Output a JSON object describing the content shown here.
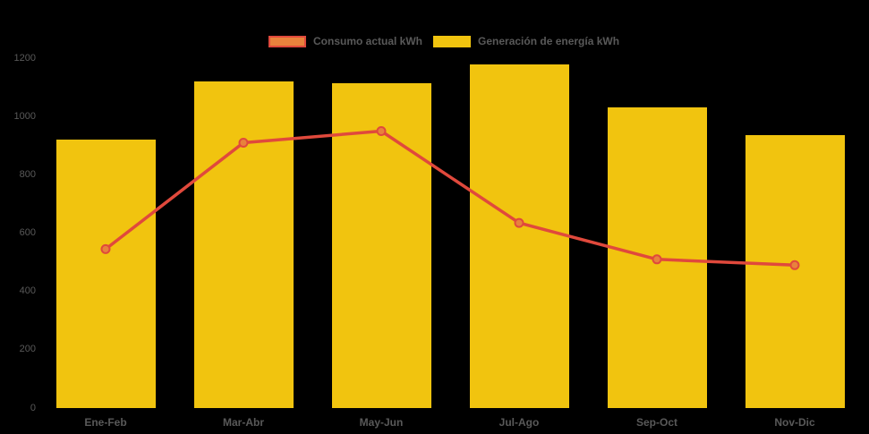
{
  "legend": {
    "items": [
      {
        "label": "Consumo actual kWh",
        "swatch_fill": "#e8823c",
        "swatch_border": "#e0493c"
      },
      {
        "label": "Generación de energía kWh",
        "swatch_fill": "#f1c40f",
        "swatch_border": "#f1c40f"
      }
    ]
  },
  "chart_data": {
    "type": "bar",
    "subtype": "bar-line-combo",
    "title": "",
    "xlabel": "",
    "ylabel": "",
    "categories": [
      "Ene-Feb",
      "Mar-Abr",
      "May-Jun",
      "Jul-Ago",
      "Sep-Oct",
      "Nov-Dic"
    ],
    "series": [
      {
        "name": "Generación de energía kWh",
        "type": "bar",
        "color": "#f1c40f",
        "values": [
          920,
          1120,
          1115,
          1180,
          1030,
          935
        ]
      },
      {
        "name": "Consumo actual kWh",
        "type": "line",
        "color": "#e0493c",
        "marker_fill": "#e8823c",
        "marker_stroke": "#e0493c",
        "values": [
          545,
          910,
          950,
          635,
          510,
          490
        ]
      }
    ],
    "ylim": [
      0,
      1200
    ],
    "yticks": [
      0,
      200,
      400,
      600,
      800,
      1000,
      1200
    ],
    "grid": false,
    "legend_position": "top-center",
    "background_color": "#000000",
    "axis_text_color": "#595959"
  }
}
